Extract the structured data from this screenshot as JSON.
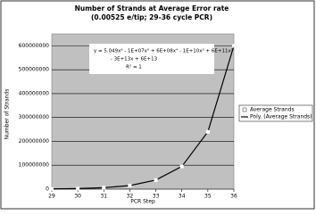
{
  "chart_data": {
    "type": "scatter",
    "title": "Number of Strands at Average Error rate",
    "subtitle": "(0.00525 e/tip; 29-36 cycle PCR)",
    "x_label": "PCR Step",
    "y_label": "Number of Strands",
    "annotations": [
      "y = 5.049x⁶ - 1E+07x⁵ + 6E+08x⁴ - 1E+10x³ + 6E+11x²",
      "- 3E+13x + 6E+13",
      "R² = 1"
    ],
    "x": [
      29,
      30,
      31,
      32,
      33,
      34,
      35,
      36
    ],
    "series": [
      {
        "name": "Average Strands",
        "color": "#ffffff",
        "values": [
          1000000,
          2400000,
          6000000,
          15000000,
          38000000,
          95000000,
          240000000,
          600000000
        ]
      },
      {
        "name": "Poly. (Average Strands)",
        "color": "#000000",
        "values": [
          1000000,
          2400000,
          6000000,
          15000000,
          38000000,
          95000000,
          240000000,
          600000000
        ]
      }
    ],
    "xlim": [
      29,
      36
    ],
    "xticks": [
      29,
      30,
      31,
      32,
      33,
      34,
      35,
      36
    ],
    "ylim": [
      0,
      650000000
    ],
    "yticks": [
      0,
      100000000,
      200000000,
      300000000,
      400000000,
      500000000,
      600000000
    ],
    "grid": true,
    "legend": "right"
  }
}
